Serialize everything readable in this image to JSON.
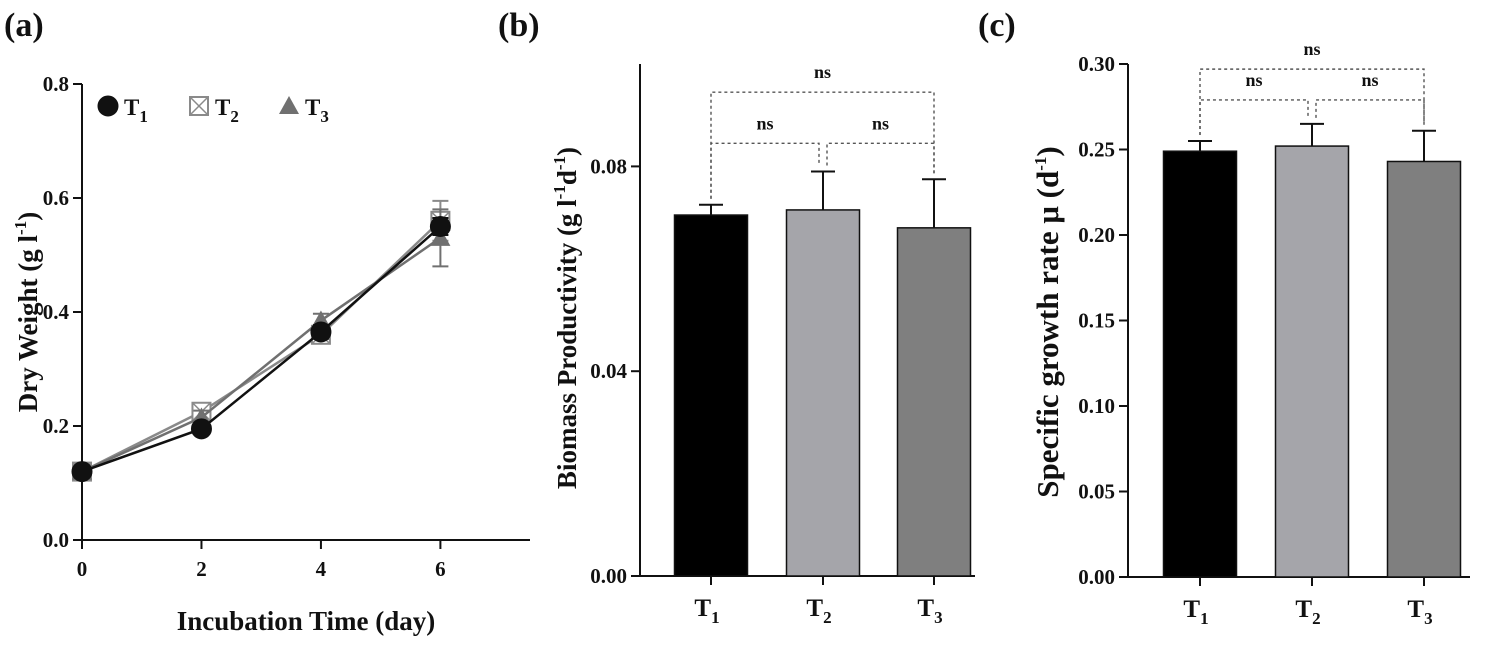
{
  "chart_data": [
    {
      "panel": "(a)",
      "type": "line",
      "xlabel": "Incubation Time (day)",
      "ylabel": "Dry Weight (g l-1)",
      "ylabel_parts": [
        "Dry Weight (g l",
        "-1",
        ")"
      ],
      "x": [
        0,
        2,
        4,
        6
      ],
      "xlim": [
        0,
        7.5
      ],
      "ylim": [
        0,
        0.8
      ],
      "xticks": [
        "0",
        "2",
        "4",
        "6"
      ],
      "yticks": [
        "0.0",
        "0.2",
        "0.4",
        "0.6",
        "0.8"
      ],
      "legend": "top-left",
      "series": [
        {
          "name": "T1",
          "base": "T",
          "sub": "1",
          "marker": "circle",
          "color": "#111111",
          "values": [
            0.12,
            0.195,
            0.365,
            0.55
          ],
          "errors": [
            0.008,
            0.01,
            0.012,
            0.015
          ]
        },
        {
          "name": "T2",
          "base": "T",
          "sub": "2",
          "marker": "square",
          "color": "#8a8a8a",
          "values": [
            0.12,
            0.225,
            0.36,
            0.56
          ],
          "errors": [
            0.01,
            0.015,
            0.015,
            0.035
          ]
        },
        {
          "name": "T3",
          "base": "T",
          "sub": "3",
          "marker": "triangle",
          "color": "#707070",
          "values": [
            0.12,
            0.215,
            0.385,
            0.53
          ],
          "errors": [
            0.01,
            0.012,
            0.012,
            0.05
          ]
        }
      ]
    },
    {
      "panel": "(b)",
      "type": "bar",
      "ylabel": "Biomass Productivity (g l-1d-1)",
      "ylabel_parts": [
        "Biomass Productivity (g l",
        "-1",
        "d",
        "-1",
        ")"
      ],
      "categories": [
        "T1",
        "T2",
        "T3"
      ],
      "category_base": "T",
      "category_subs": [
        "1",
        "2",
        "3"
      ],
      "values": [
        0.0705,
        0.0715,
        0.068
      ],
      "errors": [
        0.002,
        0.0075,
        0.0095
      ],
      "colors": [
        "#000000",
        "#a5a5aa",
        "#7f7f7f"
      ],
      "ylim": [
        0,
        0.1
      ],
      "yticks": [
        "0.00",
        "0.04",
        "0.08"
      ],
      "annotations": [
        {
          "text": "ns",
          "from": 0,
          "to": 2,
          "level": 0.0945
        },
        {
          "text": "ns",
          "from": 0,
          "to": 1,
          "level": 0.0845
        },
        {
          "text": "ns",
          "from": 1,
          "to": 2,
          "level": 0.0845
        }
      ]
    },
    {
      "panel": "(c)",
      "type": "bar",
      "ylabel": "Specific growth  rate μ (d-1)",
      "ylabel_parts": [
        "Specific growth  rate μ (d",
        "-1",
        ")"
      ],
      "categories": [
        "T1",
        "T2",
        "T3"
      ],
      "category_base": "T",
      "category_subs": [
        "1",
        "2",
        "3"
      ],
      "values": [
        0.249,
        0.252,
        0.243
      ],
      "errors": [
        0.006,
        0.013,
        0.018
      ],
      "colors": [
        "#000000",
        "#a5a5aa",
        "#7f7f7f"
      ],
      "ylim": [
        0,
        0.3
      ],
      "yticks": [
        "0.00",
        "0.05",
        "0.10",
        "0.15",
        "0.20",
        "0.25",
        "0.30"
      ],
      "annotations": [
        {
          "text": "ns",
          "from": 0,
          "to": 2,
          "level": 0.297
        },
        {
          "text": "ns",
          "from": 0,
          "to": 1,
          "level": 0.279
        },
        {
          "text": "ns",
          "from": 1,
          "to": 2,
          "level": 0.279
        }
      ]
    }
  ]
}
